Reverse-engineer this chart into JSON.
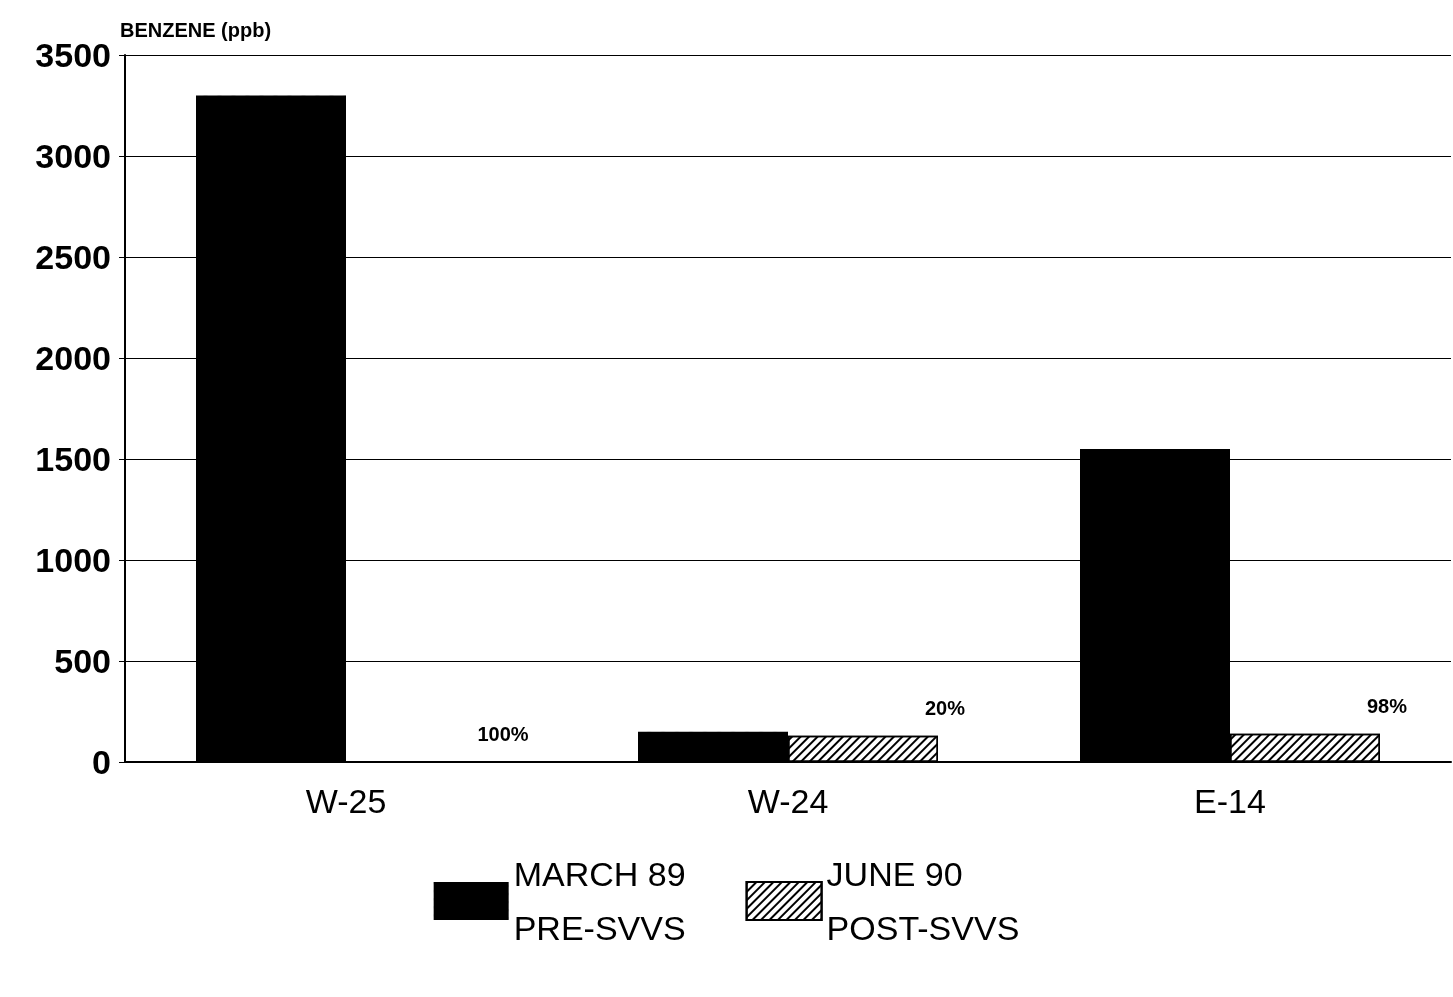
{
  "chart_data": {
    "type": "bar",
    "ylabel": "BENZENE (ppb)",
    "categories": [
      "W-25",
      "W-24",
      "E-14"
    ],
    "series": [
      {
        "name": "MARCH 89\nPRE-SVVS",
        "color": "#000000",
        "values": [
          3300,
          150,
          1550
        ]
      },
      {
        "name": "JUNE 90\nPOST-SVVS",
        "color": "#000000",
        "values": [
          0,
          130,
          140
        ]
      }
    ],
    "annotations": [
      "100%",
      "20%",
      "98%"
    ],
    "ylim": [
      0,
      3500
    ],
    "yticks": [
      0,
      500,
      1000,
      1500,
      2000,
      2500,
      3000,
      3500
    ],
    "grid": "y",
    "legend": "bottom"
  }
}
